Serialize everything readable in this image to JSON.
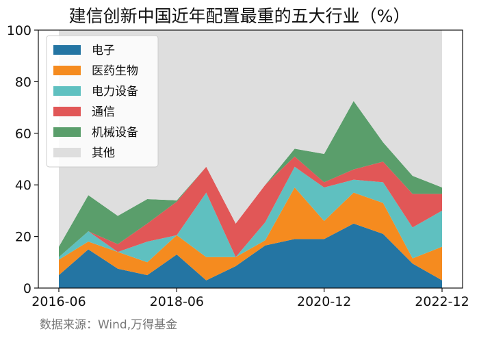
{
  "chart_data": {
    "type": "area",
    "title": "建信创新中国近年配置最重的五大行业（%）",
    "source": "数据来源：Wind,万得基金",
    "watermark": "Wind",
    "xlabel": "",
    "ylabel": "",
    "ylim": [
      0,
      100
    ],
    "yticks": [
      0,
      20,
      40,
      60,
      80,
      100
    ],
    "xtick_labels": [
      "2016-06",
      "2018-06",
      "2020-12",
      "2022-12"
    ],
    "x": [
      "2016-06",
      "2016-12",
      "2017-06",
      "2017-12",
      "2018-06",
      "2018-12",
      "2019-06",
      "2019-12",
      "2020-06",
      "2020-12",
      "2021-06",
      "2021-12",
      "2022-06",
      "2022-12"
    ],
    "legend_position": "top-left",
    "series": [
      {
        "name": "电子",
        "color": "#2475a3",
        "values": [
          5,
          15,
          7.5,
          5,
          13,
          3,
          8.5,
          16.5,
          19,
          19,
          25,
          21,
          9.5,
          3
        ]
      },
      {
        "name": "医药生物",
        "color": "#f58b1f",
        "values": [
          6,
          3,
          6.5,
          5,
          7.5,
          9,
          3.5,
          2,
          20,
          7,
          12,
          12,
          2,
          13
        ]
      },
      {
        "name": "电力设备",
        "color": "#5fc0c0",
        "values": [
          1,
          4,
          0,
          8,
          0,
          25,
          0,
          7,
          8,
          13,
          5,
          8,
          12,
          14
        ]
      },
      {
        "name": "通信",
        "color": "#e15757",
        "values": [
          0,
          0,
          3,
          7,
          13,
          10,
          13,
          14.5,
          4,
          2,
          4,
          8,
          13,
          6.5
        ]
      },
      {
        "name": "机械设备",
        "color": "#5a9e6b",
        "values": [
          4,
          14,
          11,
          9.5,
          0.5,
          0,
          0,
          0,
          3,
          11,
          26.5,
          7.5,
          7,
          2.5
        ]
      },
      {
        "name": "其他",
        "color": "#dedede",
        "values": [
          84,
          64,
          72,
          65.5,
          66,
          53,
          75,
          60,
          46,
          48,
          27.5,
          43.5,
          56.5,
          61
        ]
      }
    ]
  }
}
